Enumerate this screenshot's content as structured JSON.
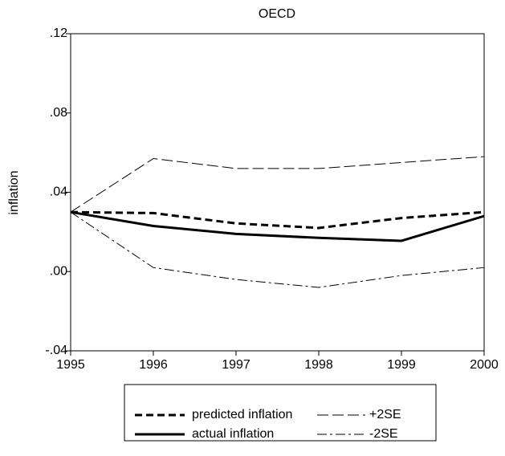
{
  "chart_data": {
    "type": "line",
    "title": "OECD",
    "y_label": "inflation",
    "x": [
      1995,
      1996,
      1997,
      1998,
      1999,
      2000
    ],
    "xlim": [
      1995,
      2000
    ],
    "xticks": [
      1995,
      1996,
      1997,
      1998,
      1999,
      2000
    ],
    "ylim": [
      -0.04,
      0.12
    ],
    "yticks": [
      {
        "value": -0.04,
        "label": "-.04"
      },
      {
        "value": 0,
        "label": ".00"
      },
      {
        "value": 0.04,
        "label": ".04"
      },
      {
        "value": 0.08,
        "label": ".08"
      },
      {
        "value": 0.12,
        "label": ".12"
      }
    ],
    "grid": false,
    "legend": "bottom",
    "series": [
      {
        "name": "predicted inflation",
        "color": "#000000",
        "style": "dashed-thick",
        "values": [
          0.03,
          0.0295,
          0.0243,
          0.022,
          0.027,
          0.03
        ]
      },
      {
        "name": "actual inflation",
        "color": "#000000",
        "style": "solid-thick",
        "values": [
          0.03,
          0.023,
          0.019,
          0.017,
          0.0155,
          0.028
        ]
      },
      {
        "name": "+2SE",
        "color": "#000000",
        "style": "long-dash",
        "values": [
          0.03,
          0.057,
          0.052,
          0.052,
          0.055,
          0.058
        ]
      },
      {
        "name": "-2SE",
        "color": "#000000",
        "style": "dash-dot",
        "values": [
          0.03,
          0.002,
          -0.004,
          -0.008,
          -0.002,
          0.002
        ]
      }
    ]
  }
}
